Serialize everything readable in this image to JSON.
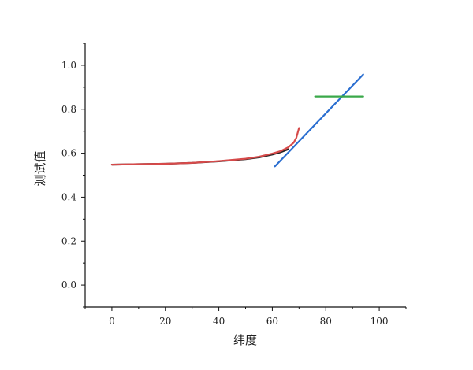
{
  "chart_data": {
    "type": "line",
    "xlabel": "纬度",
    "ylabel": "测试值",
    "xlim": [
      -10,
      110
    ],
    "ylim": [
      -0.1,
      1.1
    ],
    "x_ticks": [
      "0",
      "20",
      "40",
      "60",
      "80",
      "100"
    ],
    "y_ticks": [
      "0.0",
      "0.2",
      "0.4",
      "0.6",
      "0.8",
      "1.0"
    ],
    "grid": false,
    "legend": "none",
    "series": [
      {
        "color": "#222222",
        "x": [
          0,
          10,
          20,
          30,
          40,
          50,
          55,
          60,
          63,
          66
        ],
        "y": [
          0.548,
          0.55,
          0.552,
          0.556,
          0.563,
          0.573,
          0.581,
          0.594,
          0.604,
          0.618
        ]
      },
      {
        "color": "#d64a4a",
        "x": [
          0,
          10,
          20,
          30,
          40,
          50,
          55,
          60,
          63,
          66,
          68,
          69,
          70
        ],
        "y": [
          0.548,
          0.55,
          0.552,
          0.556,
          0.564,
          0.575,
          0.584,
          0.598,
          0.609,
          0.627,
          0.648,
          0.67,
          0.715
        ]
      },
      {
        "color": "#2a6ed0",
        "x": [
          61,
          94
        ],
        "y": [
          0.54,
          0.958
        ]
      },
      {
        "color": "#3aa84a",
        "x": [
          76,
          94
        ],
        "y": [
          0.858,
          0.858
        ]
      }
    ]
  }
}
